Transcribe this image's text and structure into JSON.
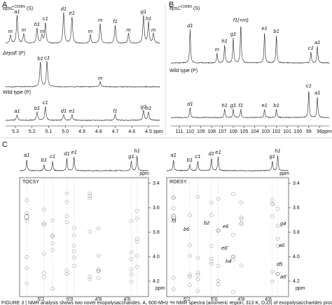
{
  "panel_a": {
    "letter": "A",
    "traces": [
      {
        "name": "epsC",
        "font_style": "italic",
        "sup": "C699N",
        "tag": " (S)"
      },
      {
        "name": "ΔepsE",
        "font_style": "italic",
        "tag": " (P)"
      },
      {
        "name": "Wild type",
        "font_style": "normal",
        "tag": " (P)"
      }
    ],
    "peak_labels": [
      [
        "a1",
        "m",
        "m",
        "b1",
        "m",
        "c1",
        "d1",
        "e1",
        "m",
        "m",
        "f1",
        "m",
        "g1",
        "h1",
        "m"
      ],
      [
        "b1",
        "c1",
        "m"
      ],
      [
        "a1",
        "b1",
        "c1",
        "d1",
        "e1",
        "f1",
        "g1",
        "h1"
      ]
    ],
    "xticks": [
      "5.3",
      "5.2",
      "5.1",
      "5.0",
      "4.9",
      "4.8",
      "4.7",
      "4.6",
      "4.5"
    ],
    "xunit": "ppm"
  },
  "panel_b": {
    "letter": "B",
    "traces": [
      {
        "name": "epsC",
        "font_style": "italic",
        "sup": "C699N",
        "tag": " (S)"
      },
      {
        "name": "Wild type",
        "font_style": "normal",
        "tag": " (P)"
      }
    ],
    "peak_labels": [
      [
        "d1",
        "m",
        "h1",
        "g1",
        "f1(+m)",
        "e1",
        "b1",
        "c1",
        "a1"
      ],
      [
        "d1",
        "h1",
        "g1",
        "f1",
        "e1",
        "b1",
        "c1",
        "a1"
      ]
    ],
    "xticks": [
      "111",
      "110",
      "109",
      "108",
      "107",
      "106",
      "105",
      "104",
      "103",
      "102",
      "101",
      "100",
      "99",
      "98"
    ],
    "xunit": "ppm"
  },
  "panel_c": {
    "letter": "C",
    "plots": [
      {
        "experiment": "TOCSY",
        "peak_labels": [
          "a1",
          "b1",
          "c1",
          "d1",
          "e1",
          "g1",
          "h1"
        ],
        "cross_labels": []
      },
      {
        "experiment": "ROESY",
        "peak_labels": [
          "a1",
          "b1",
          "c1",
          "d1",
          "e1",
          "g1",
          "h1"
        ],
        "cross_labels": [
          "f3",
          "b6",
          "b2",
          "e6",
          "g4",
          "e6'",
          "h4",
          "a6",
          "d5",
          "a6'"
        ]
      }
    ],
    "xticks": [
      "5.2",
      "5.0",
      "4.8",
      "4.6"
    ],
    "yticks": [
      "3.4",
      "3.6",
      "3.8",
      "4.0",
      "4.2"
    ],
    "unit": "ppm"
  },
  "caption": "FIGURE 3 | NMR analysis shows two novel exopolysaccharides. A, 600-MHz ¹H NMR spectra (anomeric region, 313 K, D₂O) of exopolysaccharides produced"
}
